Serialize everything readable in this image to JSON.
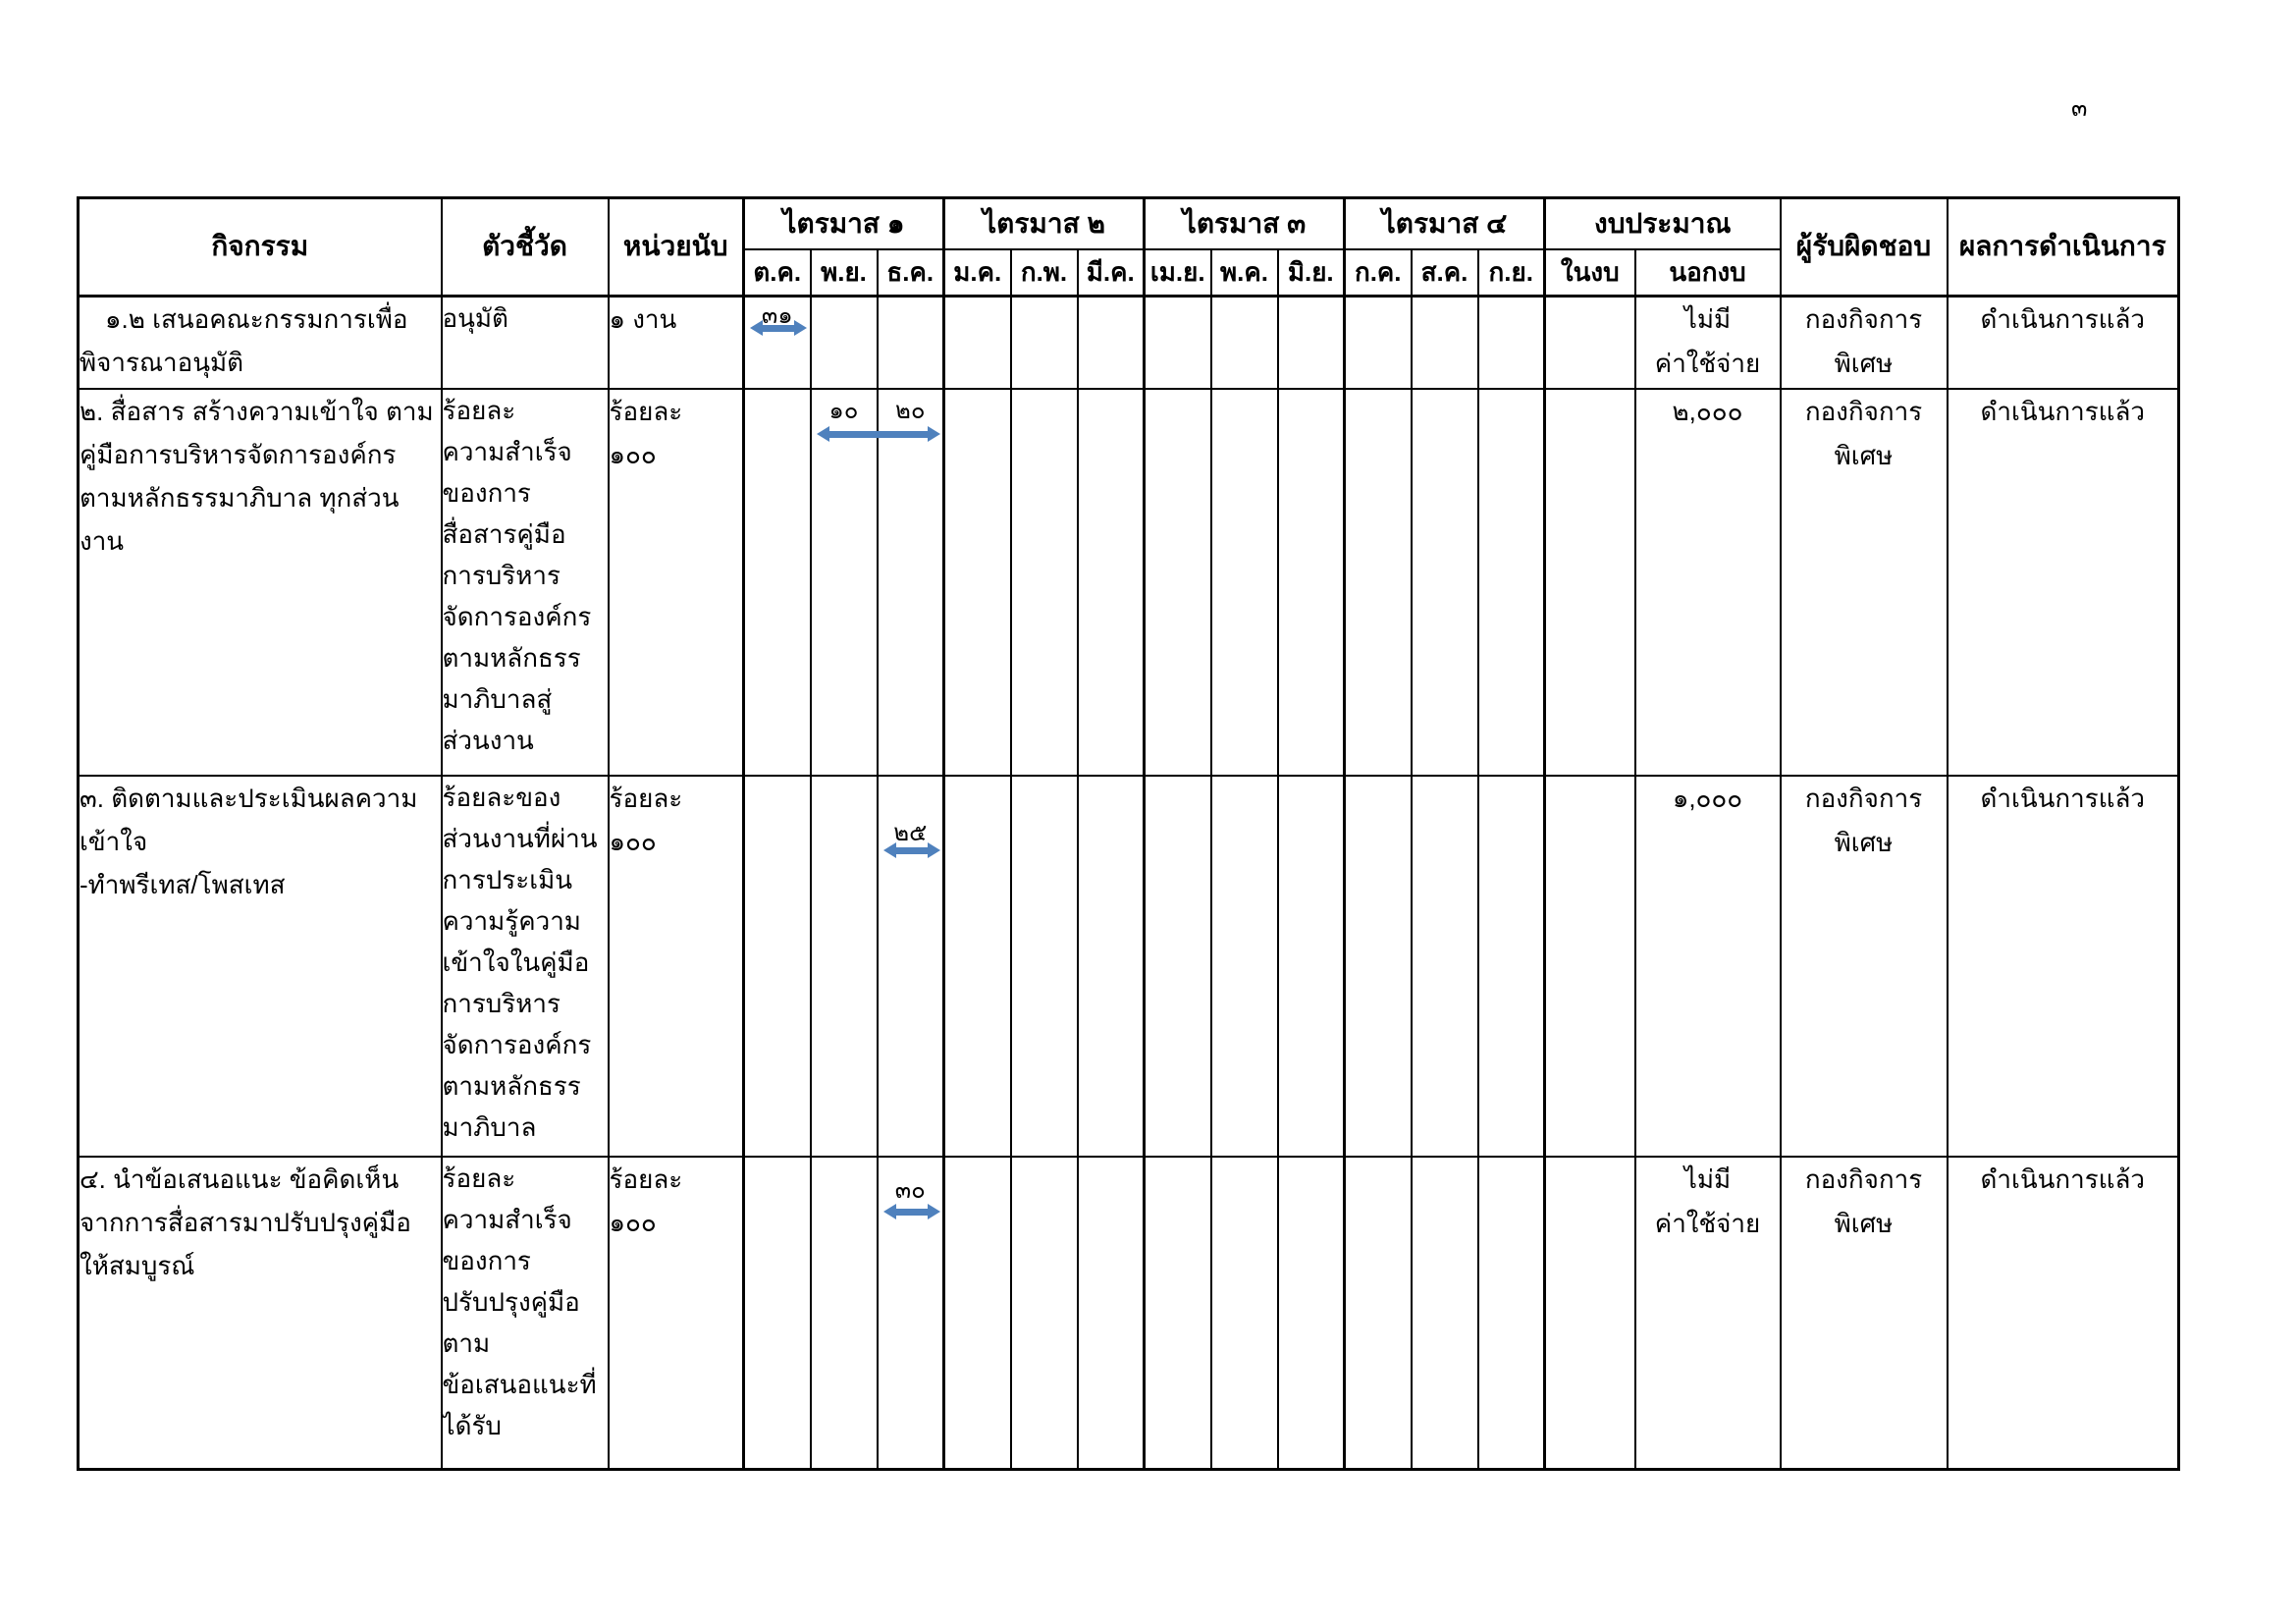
{
  "page_number": "๓",
  "colors": {
    "border": "#000000",
    "schedule_arrow": "#4f81bd"
  },
  "table": {
    "header": {
      "activity": "กิจกรรม",
      "indicator": "ตัวชี้วัด",
      "unit": "หน่วยนับ",
      "quarters": [
        {
          "label": "ไตรมาส ๑",
          "months": [
            "ต.ค.",
            "พ.ย.",
            "ธ.ค."
          ]
        },
        {
          "label": "ไตรมาส ๒",
          "months": [
            "ม.ค.",
            "ก.พ.",
            "มี.ค."
          ]
        },
        {
          "label": "ไตรมาส ๓",
          "months": [
            "เม.ย.",
            "พ.ค.",
            "มิ.ย."
          ]
        },
        {
          "label": "ไตรมาส ๔",
          "months": [
            "ก.ค.",
            "ส.ค.",
            "ก.ย."
          ]
        }
      ],
      "budget_group": "งบประมาณ",
      "budget_in": "ในงบ",
      "budget_out": "นอกงบ",
      "responsible": "ผู้รับผิดชอบ",
      "result": "ผลการดำเนินการ"
    },
    "rows": [
      {
        "activity_lines": [
          "๑.๒ เสนอคณะกรรมการเพื่อ",
          "พิจารณาอนุมัติ"
        ],
        "indent_first_line": true,
        "indicator_lines": [
          "อนุมัติ"
        ],
        "unit_lines": [
          "๑ งาน"
        ],
        "month_values": [
          {
            "month": "ต.ค.",
            "month_index": 0,
            "value": "๓๑"
          }
        ],
        "arrow": {
          "from_month": "ต.ค.",
          "month_index": 0,
          "span": 1
        },
        "budget_in": "",
        "budget_out_lines": [
          "ไม่มี",
          "ค่าใช้จ่าย"
        ],
        "responsible_lines": [
          "กองกิจการ",
          "พิเศษ"
        ],
        "result": "ดำเนินการแล้ว"
      },
      {
        "activity_lines": [
          "๒. สื่อสาร สร้างความเข้าใจ ตาม",
          "คู่มือการบริหารจัดการองค์กร",
          "ตามหลักธรรมาภิบาล ทุกส่วน",
          "งาน"
        ],
        "indent_first_line": false,
        "indicator_lines": [
          "ร้อยละ",
          "ความสำเร็จ",
          "ของการ",
          "สื่อสารคู่มือ",
          "การบริหาร",
          "จัดการองค์กร",
          "ตามหลักธรร",
          "มาภิบาลสู่",
          "ส่วนงาน"
        ],
        "unit_lines": [
          "ร้อยละ",
          "๑๐๐"
        ],
        "month_values": [
          {
            "month": "พ.ย.",
            "month_index": 1,
            "value": "๑๐"
          },
          {
            "month": "ธ.ค.",
            "month_index": 2,
            "value": "๒๐"
          }
        ],
        "arrow": {
          "from_month": "พ.ย.",
          "month_index": 1,
          "span": 2
        },
        "budget_in": "",
        "budget_out_lines": [
          "๒,๐๐๐"
        ],
        "responsible_lines": [
          "กองกิจการ",
          "พิเศษ"
        ],
        "result": "ดำเนินการแล้ว"
      },
      {
        "activity_lines": [
          "๓. ติดตามและประเมินผลความ",
          "เข้าใจ",
          "-ทำพรีเทส/โพสเทส"
        ],
        "indent_first_line": false,
        "indicator_lines": [
          "ร้อยละของ",
          "ส่วนงานที่ผ่าน",
          "การประเมิน",
          "ความรู้ความ",
          "เข้าใจในคู่มือ",
          "การบริหาร",
          "จัดการองค์กร",
          "ตามหลักธรร",
          "มาภิบาล"
        ],
        "unit_lines": [
          "ร้อยละ",
          "๑๐๐"
        ],
        "month_values": [
          {
            "month": "ธ.ค.",
            "month_index": 2,
            "value": "๒๕"
          }
        ],
        "arrow": {
          "from_month": "ธ.ค.",
          "month_index": 2,
          "span": 1
        },
        "budget_in": "",
        "budget_out_lines": [
          "๑,๐๐๐"
        ],
        "responsible_lines": [
          "กองกิจการ",
          "พิเศษ"
        ],
        "result": "ดำเนินการแล้ว"
      },
      {
        "activity_lines": [
          "๔. นำข้อเสนอแนะ ข้อคิดเห็น",
          "จากการสื่อสารมาปรับปรุงคู่มือ",
          "ให้สมบูรณ์"
        ],
        "indent_first_line": false,
        "indicator_lines": [
          "ร้อยละ",
          "ความสำเร็จ",
          "ของการ",
          "ปรับปรุงคู่มือ",
          "ตาม",
          "ข้อเสนอแนะที่",
          "ได้รับ"
        ],
        "unit_lines": [
          "ร้อยละ",
          "๑๐๐"
        ],
        "month_values": [
          {
            "month": "ธ.ค.",
            "month_index": 2,
            "value": "๓๐"
          }
        ],
        "arrow": {
          "from_month": "ธ.ค.",
          "month_index": 2,
          "span": 1
        },
        "budget_in": "",
        "budget_out_lines": [
          "ไม่มี",
          "ค่าใช้จ่าย"
        ],
        "responsible_lines": [
          "กองกิจการ",
          "พิเศษ"
        ],
        "result": "ดำเนินการแล้ว"
      }
    ]
  }
}
